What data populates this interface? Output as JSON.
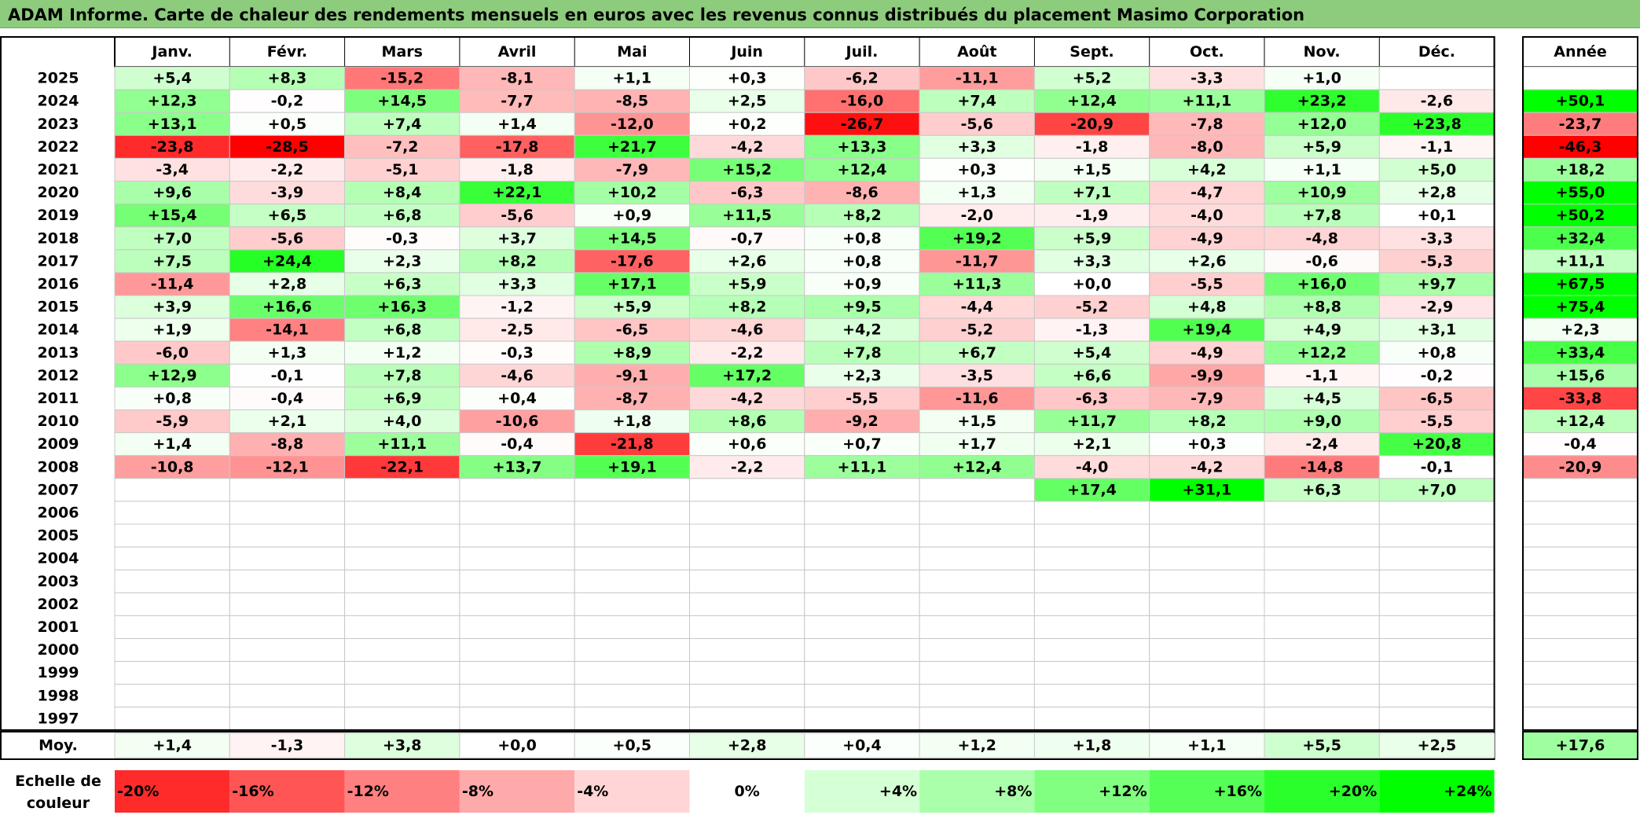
{
  "title": "ADAM Informe. Carte de chaleur des rendements mensuels en euros avec les revenus connus distribués du placement Masimo Corporation",
  "chart_data": {
    "type": "heatmap",
    "months": [
      "Janv.",
      "Févr.",
      "Mars",
      "Avril",
      "Mai",
      "Juin",
      "Juil.",
      "Août",
      "Sept.",
      "Oct.",
      "Nov.",
      "Déc."
    ],
    "year_header": "Année",
    "rows": [
      {
        "year": "2025",
        "months": [
          "+5,4",
          "+8,3",
          "-15,2",
          "-8,1",
          "+1,1",
          "+0,3",
          "-6,2",
          "-11,1",
          "+5,2",
          "-3,3",
          "+1,0",
          ""
        ],
        "annual": ""
      },
      {
        "year": "2024",
        "months": [
          "+12,3",
          "-0,2",
          "+14,5",
          "-7,7",
          "-8,5",
          "+2,5",
          "-16,0",
          "+7,4",
          "+12,4",
          "+11,1",
          "+23,2",
          "-2,6"
        ],
        "annual": "+50,1"
      },
      {
        "year": "2023",
        "months": [
          "+13,1",
          "+0,5",
          "+7,4",
          "+1,4",
          "-12,0",
          "+0,2",
          "-26,7",
          "-5,6",
          "-20,9",
          "-7,8",
          "+12,0",
          "+23,8"
        ],
        "annual": "-23,7"
      },
      {
        "year": "2022",
        "months": [
          "-23,8",
          "-28,5",
          "-7,2",
          "-17,8",
          "+21,7",
          "-4,2",
          "+13,3",
          "+3,3",
          "-1,8",
          "-8,0",
          "+5,9",
          "-1,1"
        ],
        "annual": "-46,3"
      },
      {
        "year": "2021",
        "months": [
          "-3,4",
          "-2,2",
          "-5,1",
          "-1,8",
          "-7,9",
          "+15,2",
          "+12,4",
          "+0,3",
          "+1,5",
          "+4,2",
          "+1,1",
          "+5,0"
        ],
        "annual": "+18,2"
      },
      {
        "year": "2020",
        "months": [
          "+9,6",
          "-3,9",
          "+8,4",
          "+22,1",
          "+10,2",
          "-6,3",
          "-8,6",
          "+1,3",
          "+7,1",
          "-4,7",
          "+10,9",
          "+2,8"
        ],
        "annual": "+55,0"
      },
      {
        "year": "2019",
        "months": [
          "+15,4",
          "+6,5",
          "+6,8",
          "-5,6",
          "+0,9",
          "+11,5",
          "+8,2",
          "-2,0",
          "-1,9",
          "-4,0",
          "+7,8",
          "+0,1"
        ],
        "annual": "+50,2"
      },
      {
        "year": "2018",
        "months": [
          "+7,0",
          "-5,6",
          "-0,3",
          "+3,7",
          "+14,5",
          "-0,7",
          "+0,8",
          "+19,2",
          "+5,9",
          "-4,9",
          "-4,8",
          "-3,3"
        ],
        "annual": "+32,4"
      },
      {
        "year": "2017",
        "months": [
          "+7,5",
          "+24,4",
          "+2,3",
          "+8,2",
          "-17,6",
          "+2,6",
          "+0,8",
          "-11,7",
          "+3,3",
          "+2,6",
          "-0,6",
          "-5,3"
        ],
        "annual": "+11,1"
      },
      {
        "year": "2016",
        "months": [
          "-11,4",
          "+2,8",
          "+6,3",
          "+3,3",
          "+17,1",
          "+5,9",
          "+0,9",
          "+11,3",
          "+0,0",
          "-5,5",
          "+16,0",
          "+9,7"
        ],
        "annual": "+67,5"
      },
      {
        "year": "2015",
        "months": [
          "+3,9",
          "+16,6",
          "+16,3",
          "-1,2",
          "+5,9",
          "+8,2",
          "+9,5",
          "-4,4",
          "-5,2",
          "+4,8",
          "+8,8",
          "-2,9"
        ],
        "annual": "+75,4"
      },
      {
        "year": "2014",
        "months": [
          "+1,9",
          "-14,1",
          "+6,8",
          "-2,5",
          "-6,5",
          "-4,6",
          "+4,2",
          "-5,2",
          "-1,3",
          "+19,4",
          "+4,9",
          "+3,1"
        ],
        "annual": "+2,3"
      },
      {
        "year": "2013",
        "months": [
          "-6,0",
          "+1,3",
          "+1,2",
          "-0,3",
          "+8,9",
          "-2,2",
          "+7,8",
          "+6,7",
          "+5,4",
          "-4,9",
          "+12,2",
          "+0,8"
        ],
        "annual": "+33,4"
      },
      {
        "year": "2012",
        "months": [
          "+12,9",
          "-0,1",
          "+7,8",
          "-4,6",
          "-9,1",
          "+17,2",
          "+2,3",
          "-3,5",
          "+6,6",
          "-9,9",
          "-1,1",
          "-0,2"
        ],
        "annual": "+15,6"
      },
      {
        "year": "2011",
        "months": [
          "+0,8",
          "-0,4",
          "+6,9",
          "+0,4",
          "-8,7",
          "-4,2",
          "-5,5",
          "-11,6",
          "-6,3",
          "-7,9",
          "+4,5",
          "-6,5"
        ],
        "annual": "-33,8"
      },
      {
        "year": "2010",
        "months": [
          "-5,9",
          "+2,1",
          "+4,0",
          "-10,6",
          "+1,8",
          "+8,6",
          "-9,2",
          "+1,5",
          "+11,7",
          "+8,2",
          "+9,0",
          "-5,5"
        ],
        "annual": "+12,4"
      },
      {
        "year": "2009",
        "months": [
          "+1,4",
          "-8,8",
          "+11,1",
          "-0,4",
          "-21,8",
          "+0,6",
          "+0,7",
          "+1,7",
          "+2,1",
          "+0,3",
          "-2,4",
          "+20,8"
        ],
        "annual": "-0,4"
      },
      {
        "year": "2008",
        "months": [
          "-10,8",
          "-12,1",
          "-22,1",
          "+13,7",
          "+19,1",
          "-2,2",
          "+11,1",
          "+12,4",
          "-4,0",
          "-4,2",
          "-14,8",
          "-0,1"
        ],
        "annual": "-20,9"
      },
      {
        "year": "2007",
        "months": [
          "",
          "",
          "",
          "",
          "",
          "",
          "",
          "",
          "+17,4",
          "+31,1",
          "+6,3",
          "+7,0"
        ],
        "annual": ""
      },
      {
        "year": "2006",
        "months": [
          "",
          "",
          "",
          "",
          "",
          "",
          "",
          "",
          "",
          "",
          "",
          ""
        ],
        "annual": ""
      },
      {
        "year": "2005",
        "months": [
          "",
          "",
          "",
          "",
          "",
          "",
          "",
          "",
          "",
          "",
          "",
          ""
        ],
        "annual": ""
      },
      {
        "year": "2004",
        "months": [
          "",
          "",
          "",
          "",
          "",
          "",
          "",
          "",
          "",
          "",
          "",
          ""
        ],
        "annual": ""
      },
      {
        "year": "2003",
        "months": [
          "",
          "",
          "",
          "",
          "",
          "",
          "",
          "",
          "",
          "",
          "",
          ""
        ],
        "annual": ""
      },
      {
        "year": "2002",
        "months": [
          "",
          "",
          "",
          "",
          "",
          "",
          "",
          "",
          "",
          "",
          "",
          ""
        ],
        "annual": ""
      },
      {
        "year": "2001",
        "months": [
          "",
          "",
          "",
          "",
          "",
          "",
          "",
          "",
          "",
          "",
          "",
          ""
        ],
        "annual": ""
      },
      {
        "year": "2000",
        "months": [
          "",
          "",
          "",
          "",
          "",
          "",
          "",
          "",
          "",
          "",
          "",
          ""
        ],
        "annual": ""
      },
      {
        "year": "1999",
        "months": [
          "",
          "",
          "",
          "",
          "",
          "",
          "",
          "",
          "",
          "",
          "",
          ""
        ],
        "annual": ""
      },
      {
        "year": "1998",
        "months": [
          "",
          "",
          "",
          "",
          "",
          "",
          "",
          "",
          "",
          "",
          "",
          ""
        ],
        "annual": ""
      },
      {
        "year": "1997",
        "months": [
          "",
          "",
          "",
          "",
          "",
          "",
          "",
          "",
          "",
          "",
          "",
          ""
        ],
        "annual": ""
      }
    ],
    "average": {
      "label": "Moy.",
      "months": [
        "+1,4",
        "-1,3",
        "+3,8",
        "+0,0",
        "+0,5",
        "+2,8",
        "+0,4",
        "+1,2",
        "+1,8",
        "+1,1",
        "+5,5",
        "+2,5"
      ],
      "annual": "+17,6"
    },
    "scale": {
      "label_line1": "Echelle de",
      "label_line2": "couleur",
      "items": [
        "-20%",
        "-16%",
        "-12%",
        "-8%",
        "-4%",
        "0%",
        "+4%",
        "+8%",
        "+12%",
        "+16%",
        "+20%",
        "+24%"
      ]
    },
    "colors": {
      "neg_max": "#ff0000",
      "neutral": "#ffffff",
      "pos_max": "#00ff00",
      "title_bg": "#8ccc7c"
    }
  }
}
